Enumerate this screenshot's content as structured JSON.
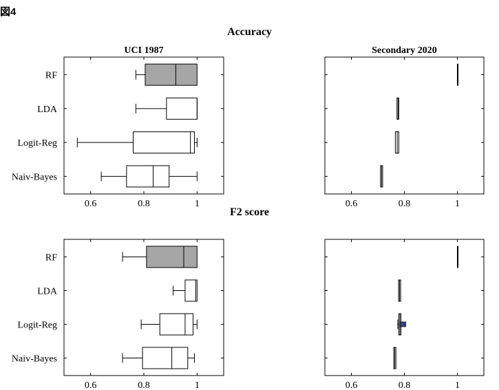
{
  "figure_label": "図4",
  "sections": [
    {
      "title": "Accuracy"
    },
    {
      "title": "F2 score"
    }
  ],
  "chart_data": [
    {
      "type": "boxplot",
      "section": "Accuracy",
      "title": "UCI 1987",
      "xlim": [
        0.5,
        1.1
      ],
      "xticks": [
        0.6,
        0.8,
        1
      ],
      "xtick_labels": [
        "0.6",
        "0.8",
        "1"
      ],
      "grid": false,
      "categories": [
        "RF",
        "LDA",
        "Logit-Reg",
        "Naiv-Bayes"
      ],
      "boxes": [
        {
          "category": "RF",
          "min": 0.77,
          "q1": 0.805,
          "median": 0.92,
          "q3": 1.0,
          "max": 1.0,
          "fill": "#a6a6a6"
        },
        {
          "category": "LDA",
          "min": 0.77,
          "q1": 0.885,
          "median": 1.0,
          "q3": 1.0,
          "max": 1.0,
          "fill": "#ffffff"
        },
        {
          "category": "Logit-Reg",
          "min": 0.55,
          "q1": 0.76,
          "median": 0.975,
          "q3": 0.99,
          "max": 1.0,
          "fill": "#ffffff"
        },
        {
          "category": "Naiv-Bayes",
          "min": 0.64,
          "q1": 0.735,
          "median": 0.835,
          "q3": 0.895,
          "max": 1.0,
          "fill": "#ffffff"
        }
      ]
    },
    {
      "type": "boxplot",
      "section": "Accuracy",
      "title": "Secondary 2020",
      "xlim": [
        0.5,
        1.1
      ],
      "xticks": [
        0.6,
        0.8,
        1
      ],
      "xtick_labels": [
        "0.6",
        "0.8",
        "1"
      ],
      "grid": false,
      "categories": [
        "RF",
        "LDA",
        "Logit-Reg",
        "Naiv-Bayes"
      ],
      "boxes": [
        {
          "category": "RF",
          "min": 1.0,
          "q1": 1.0,
          "median": 1.0,
          "q3": 1.0,
          "max": 1.0,
          "fill": "#a6a6a6"
        },
        {
          "category": "LDA",
          "min": 0.772,
          "q1": 0.772,
          "median": 0.776,
          "q3": 0.779,
          "max": 0.779,
          "fill": "#ffffff"
        },
        {
          "category": "Logit-Reg",
          "min": 0.766,
          "q1": 0.766,
          "median": 0.773,
          "q3": 0.779,
          "max": 0.779,
          "fill": "#ffffff"
        },
        {
          "category": "Naiv-Bayes",
          "min": 0.71,
          "q1": 0.71,
          "median": 0.714,
          "q3": 0.718,
          "max": 0.718,
          "fill": "#ffffff"
        }
      ]
    },
    {
      "type": "boxplot",
      "section": "F2 score",
      "title": "",
      "xlim": [
        0.5,
        1.1
      ],
      "xticks": [
        0.6,
        0.8,
        1
      ],
      "xtick_labels": [
        "0.6",
        "0.8",
        "1"
      ],
      "grid": false,
      "categories": [
        "RF",
        "LDA",
        "Logit-Reg",
        "Naiv-Bayes"
      ],
      "boxes": [
        {
          "category": "RF",
          "min": 0.72,
          "q1": 0.81,
          "median": 0.95,
          "q3": 1.0,
          "max": 1.0,
          "fill": "#a6a6a6"
        },
        {
          "category": "LDA",
          "min": 0.91,
          "q1": 0.955,
          "median": 0.995,
          "q3": 1.0,
          "max": 1.0,
          "fill": "#ffffff"
        },
        {
          "category": "Logit-Reg",
          "min": 0.79,
          "q1": 0.86,
          "median": 0.955,
          "q3": 0.985,
          "max": 1.0,
          "fill": "#ffffff"
        },
        {
          "category": "Naiv-Bayes",
          "min": 0.72,
          "q1": 0.795,
          "median": 0.905,
          "q3": 0.965,
          "max": 0.99,
          "fill": "#ffffff"
        }
      ]
    },
    {
      "type": "boxplot",
      "section": "F2 score",
      "title": "",
      "xlim": [
        0.5,
        1.1
      ],
      "xticks": [
        0.6,
        0.8,
        1
      ],
      "xtick_labels": [
        "0.6",
        "0.8",
        "1"
      ],
      "grid": false,
      "categories": [
        "RF",
        "LDA",
        "Logit-Reg",
        "Naiv-Bayes"
      ],
      "boxes": [
        {
          "category": "RF",
          "min": 1.0,
          "q1": 1.0,
          "median": 1.0,
          "q3": 1.0,
          "max": 1.0,
          "fill": "#a6a6a6"
        },
        {
          "category": "LDA",
          "min": 0.778,
          "q1": 0.778,
          "median": 0.782,
          "q3": 0.786,
          "max": 0.786,
          "fill": "#ffffff"
        },
        {
          "category": "Logit-Reg",
          "min": 0.775,
          "q1": 0.779,
          "median": 0.783,
          "q3": 0.787,
          "max": 0.787,
          "fill": "#ffffff",
          "outliers": [
            0.795
          ],
          "outlier_color": "#2e3f8f"
        },
        {
          "category": "Naiv-Bayes",
          "min": 0.76,
          "q1": 0.76,
          "median": 0.764,
          "q3": 0.768,
          "max": 0.768,
          "fill": "#ffffff"
        }
      ]
    }
  ]
}
